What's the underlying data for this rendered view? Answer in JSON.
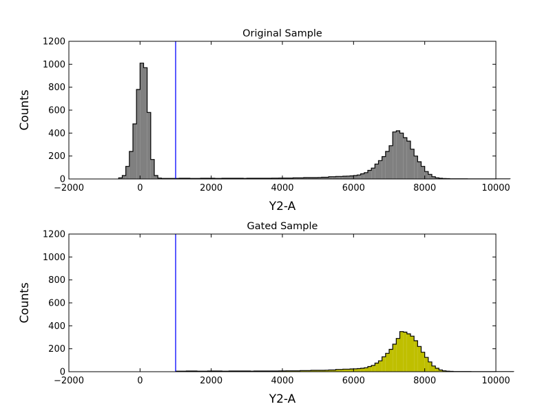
{
  "chart_data": [
    {
      "type": "histogram",
      "title": "Original Sample",
      "xlabel": "Y2-A",
      "ylabel": "Counts",
      "xlim": [
        -2000,
        10000
      ],
      "ylim": [
        0,
        1200
      ],
      "xticks": [
        "−2000",
        "0",
        "2000",
        "4000",
        "6000",
        "8000",
        "10000"
      ],
      "xtick_values": [
        -2000,
        0,
        2000,
        4000,
        6000,
        8000,
        10000
      ],
      "yticks": [
        "0",
        "200",
        "400",
        "600",
        "800",
        "1000",
        "1200"
      ],
      "ytick_values": [
        0,
        200,
        400,
        600,
        800,
        1000,
        1200
      ],
      "fill_color": "#808080",
      "edge_color": "#000000",
      "threshold": {
        "x": 1000,
        "color": "#0000ff"
      },
      "bin_start": -600,
      "bin_width": 100,
      "counts": [
        10,
        30,
        110,
        240,
        480,
        780,
        1010,
        970,
        580,
        170,
        30,
        8,
        5,
        5,
        5,
        5,
        5,
        6,
        6,
        6,
        5,
        5,
        5,
        6,
        6,
        6,
        6,
        5,
        5,
        6,
        6,
        6,
        6,
        6,
        6,
        5,
        6,
        6,
        6,
        6,
        6,
        6,
        6,
        7,
        7,
        8,
        8,
        8,
        8,
        10,
        10,
        10,
        12,
        12,
        12,
        12,
        13,
        15,
        15,
        20,
        20,
        22,
        22,
        24,
        25,
        27,
        30,
        35,
        45,
        55,
        75,
        95,
        130,
        160,
        195,
        240,
        290,
        410,
        420,
        400,
        360,
        330,
        260,
        200,
        150,
        110,
        65,
        40,
        20,
        10,
        6,
        4,
        3,
        2,
        2,
        2,
        2,
        2,
        1,
        1,
        1,
        1,
        1,
        1,
        1,
        1,
        1,
        1,
        1,
        1
      ]
    },
    {
      "type": "histogram",
      "title": "Gated Sample",
      "xlabel": "Y2-A",
      "ylabel": "Counts",
      "xlim": [
        -2000,
        10000
      ],
      "ylim": [
        0,
        1200
      ],
      "xticks": [
        "−2000",
        "0",
        "2000",
        "4000",
        "6000",
        "8000",
        "10000"
      ],
      "xtick_values": [
        -2000,
        0,
        2000,
        4000,
        6000,
        8000,
        10000
      ],
      "yticks": [
        "0",
        "200",
        "400",
        "600",
        "800",
        "1000",
        "1200"
      ],
      "ytick_values": [
        0,
        200,
        400,
        600,
        800,
        1000,
        1200
      ],
      "fill_color": "#bfbf00",
      "edge_color": "#000000",
      "threshold": {
        "x": 1000,
        "color": "#0000ff"
      },
      "bin_start": 1000,
      "bin_width": 100,
      "counts": [
        5,
        5,
        5,
        6,
        6,
        6,
        5,
        5,
        5,
        6,
        6,
        6,
        6,
        5,
        5,
        6,
        6,
        6,
        6,
        6,
        6,
        5,
        6,
        6,
        6,
        6,
        6,
        6,
        6,
        7,
        7,
        8,
        8,
        8,
        8,
        10,
        10,
        10,
        12,
        12,
        12,
        12,
        13,
        15,
        15,
        20,
        20,
        22,
        22,
        24,
        25,
        27,
        30,
        35,
        45,
        55,
        75,
        95,
        130,
        160,
        195,
        240,
        290,
        350,
        345,
        330,
        310,
        270,
        220,
        170,
        125,
        85,
        50,
        30,
        15,
        8,
        5,
        3,
        2,
        2,
        2,
        2,
        2,
        1,
        1,
        1,
        1,
        1,
        1,
        1,
        1,
        1,
        1,
        1,
        1
      ]
    }
  ]
}
